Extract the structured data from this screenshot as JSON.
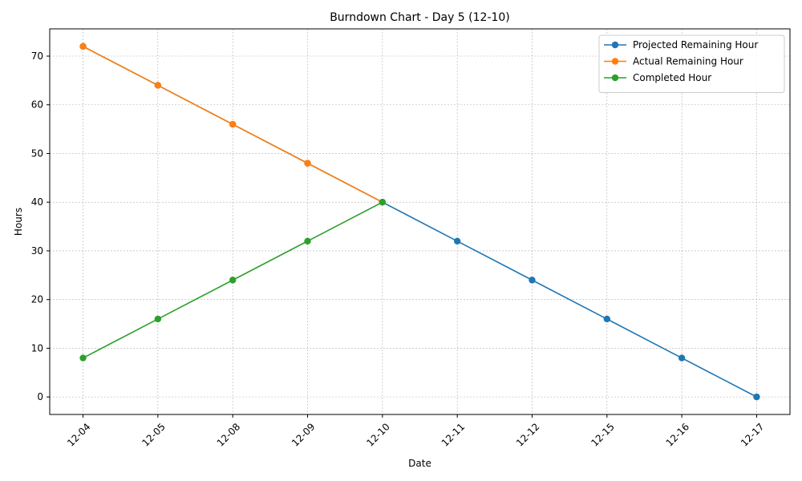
{
  "chart_data": {
    "type": "line",
    "title": "Burndown Chart - Day 5 (12-10)",
    "xlabel": "Date",
    "ylabel": "Hours",
    "categories": [
      "12-04",
      "12-05",
      "12-08",
      "12-09",
      "12-10",
      "12-11",
      "12-12",
      "12-15",
      "12-16",
      "12-17"
    ],
    "ylim": [
      -3.6,
      75.6
    ],
    "yticks": [
      0,
      10,
      20,
      30,
      40,
      50,
      60,
      70
    ],
    "grid": true,
    "legend_position": "top-right",
    "series": [
      {
        "name": "Projected Remaining Hour",
        "color": "#1f77b4",
        "values": [
          72,
          64,
          56,
          48,
          40,
          32,
          24,
          16,
          8,
          0
        ]
      },
      {
        "name": "Actual Remaining Hour",
        "color": "#ff7f0e",
        "values": [
          72,
          64,
          56,
          48,
          40,
          null,
          null,
          null,
          null,
          null
        ]
      },
      {
        "name": "Completed Hour",
        "color": "#2ca02c",
        "values": [
          8,
          16,
          24,
          32,
          40,
          null,
          null,
          null,
          null,
          null
        ]
      }
    ]
  }
}
